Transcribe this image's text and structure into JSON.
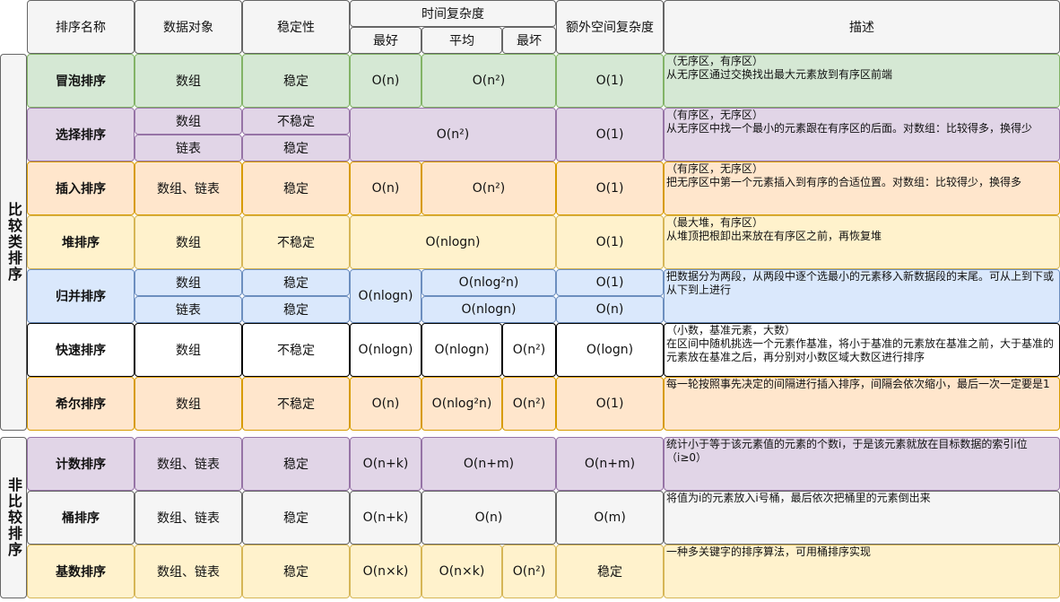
{
  "headers": {
    "name": "排序名称",
    "object": "数据对象",
    "stability": "稳定性",
    "time": "时间复杂度",
    "best": "最好",
    "average": "平均",
    "worst": "最坏",
    "space": "额外空间复杂度",
    "description": "描述"
  },
  "groups": [
    {
      "label": "比较类排序",
      "rows": [
        {
          "name": "冒泡排序",
          "object": "数组",
          "stability": "稳定",
          "best": "O(n)",
          "average": "O(n²)",
          "space": "O(1)",
          "description": [
            "（无序区，有序区）",
            "从无序区通过交换找出最大元素放到有序区前端"
          ]
        },
        {
          "name": "选择排序",
          "objects": [
            "数组",
            "链表"
          ],
          "stabilities": [
            "不稳定",
            "稳定"
          ],
          "time": "O(n²)",
          "space": "O(1)",
          "description": [
            "（有序区，无序区）",
            "从无序区中找一个最小的元素跟在有序区的后面。对数组：比较得多，换得少"
          ]
        },
        {
          "name": "插入排序",
          "object": "数组、链表",
          "stability": "稳定",
          "best": "O(n)",
          "average": "O(n²)",
          "space": "O(1)",
          "description": [
            "（有序区，无序区）",
            "把无序区中第一个元素插入到有序的合适位置。对数组：比较得少，换得多"
          ]
        },
        {
          "name": "堆排序",
          "object": "数组",
          "stability": "不稳定",
          "time": "O(nlogn)",
          "space": "O(1)",
          "description": [
            "（最大堆，有序区）",
            "从堆顶把根卸出来放在有序区之前，再恢复堆"
          ]
        },
        {
          "name": "归并排序",
          "objects": [
            "数组",
            "链表"
          ],
          "stabilities": [
            "稳定",
            "稳定"
          ],
          "best": "O(nlogn)",
          "averages": [
            "O(nlog²n)",
            "O(nlogn)"
          ],
          "spaces": [
            "O(1)",
            "O(n)"
          ],
          "description": [
            "把数据分为两段，从两段中逐个选最小的元素移入新数据段的末尾。可从上到下或从下到上进行"
          ]
        },
        {
          "name": "快速排序",
          "object": "数组",
          "stability": "不稳定",
          "best": "O(nlogn)",
          "average": "O(nlogn)",
          "worst": "O(n²)",
          "space": "O(logn)",
          "description": [
            "（小数，基准元素，大数）",
            "在区间中随机挑选一个元素作基准，将小于基准的元素放在基准之前，大于基准的元素放在基准之后，再分别对小数区域大数区进行排序"
          ]
        },
        {
          "name": "希尔排序",
          "object": "数组",
          "stability": "不稳定",
          "best": "O(n)",
          "average": "O(nlog²n)",
          "worst": "O(n²)",
          "space": "O(1)",
          "description": [
            "每一轮按照事先决定的间隔进行插入排序，间隔会依次缩小，最后一次一定要是1"
          ]
        }
      ]
    },
    {
      "label": "非比较排序",
      "rows": [
        {
          "name": "计数排序",
          "object": "数组、链表",
          "stability": "稳定",
          "best": "O(n+k)",
          "average": "O(n+m)",
          "space": "O(n+m)",
          "description": [
            "统计小于等于该元素值的元素的个数i，于是该元素就放在目标数据的索引i位（i≥0）"
          ]
        },
        {
          "name": "桶排序",
          "object": "数组、链表",
          "stability": "稳定",
          "best": "O(n+k)",
          "average": "O(n)",
          "space": "O(m)",
          "description": [
            "将值为i的元素放入i号桶，最后依次把桶里的元素倒出来"
          ]
        },
        {
          "name": "基数排序",
          "object": "数组、链表",
          "stability": "稳定",
          "best": "O(n×k)",
          "average": "O(n×k)",
          "worst": "O(n²)",
          "space": "稳定",
          "description": [
            "一种多关键字的排序算法，可用桶排序实现"
          ]
        }
      ]
    }
  ]
}
